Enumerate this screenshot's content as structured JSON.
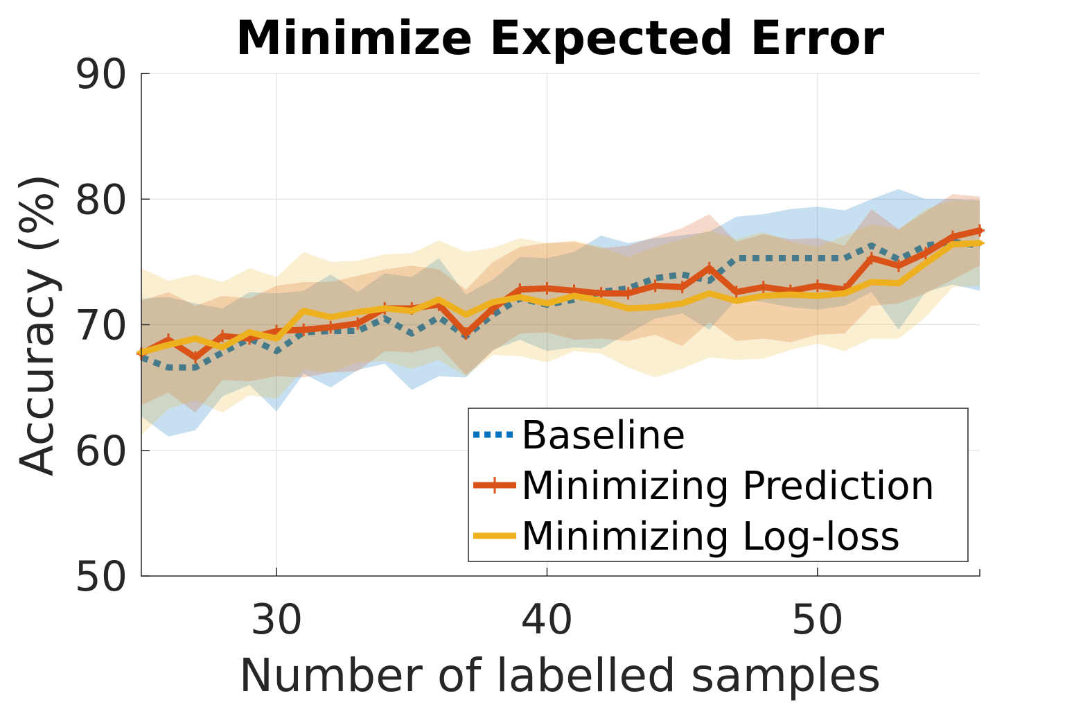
{
  "chart_data": {
    "type": "line",
    "title": "Minimize Expected Error",
    "xlabel": "Number of labelled samples",
    "ylabel": "Accuracy (%)",
    "xlim": [
      25,
      56
    ],
    "ylim": [
      50,
      90
    ],
    "xticks": [
      30,
      40,
      50
    ],
    "yticks": [
      50,
      60,
      70,
      80,
      90
    ],
    "grid": true,
    "legend_position": "lower-right",
    "x": [
      25,
      26,
      27,
      28,
      29,
      30,
      31,
      32,
      33,
      34,
      35,
      36,
      37,
      38,
      39,
      40,
      41,
      42,
      43,
      44,
      45,
      46,
      47,
      48,
      49,
      50,
      51,
      52,
      53,
      54,
      55,
      56
    ],
    "series": [
      {
        "name": "Baseline",
        "color": "#0072BD",
        "style": "dotted",
        "values": [
          67.4,
          66.6,
          66.6,
          67.8,
          68.9,
          67.9,
          69.4,
          69.5,
          69.5,
          70.5,
          69.3,
          70.6,
          69.1,
          70.8,
          72.1,
          71.6,
          72.0,
          72.6,
          72.9,
          73.7,
          74.0,
          73.5,
          75.3,
          75.3,
          75.3,
          75.3,
          75.3,
          76.3,
          75.2,
          76.3,
          76.6,
          76.3
        ],
        "upper": [
          72.1,
          72.2,
          71.7,
          71.3,
          72.6,
          72.5,
          72.7,
          74.0,
          72.6,
          74.1,
          73.8,
          75.3,
          72.4,
          73.6,
          75.4,
          75.3,
          75.8,
          77.1,
          76.5,
          76.9,
          77.1,
          77.4,
          78.6,
          78.8,
          79.2,
          79.4,
          79.1,
          80.0,
          80.8,
          80.0,
          80.0,
          79.9
        ],
        "lower": [
          62.7,
          61.1,
          61.6,
          64.3,
          65.2,
          63.1,
          66.1,
          65.0,
          66.4,
          66.9,
          64.8,
          65.9,
          65.8,
          68.0,
          68.8,
          67.9,
          68.2,
          68.1,
          69.3,
          70.5,
          70.9,
          69.6,
          72.0,
          71.8,
          71.4,
          71.2,
          71.5,
          72.6,
          69.6,
          72.6,
          73.2,
          72.7
        ]
      },
      {
        "name": "Minimizing Prediction",
        "color": "#D95319",
        "style": "solid-plus",
        "values": [
          67.7,
          68.8,
          67.4,
          69.1,
          68.9,
          69.5,
          69.6,
          69.8,
          70.1,
          71.3,
          71.3,
          71.6,
          69.3,
          71.3,
          72.8,
          72.9,
          72.7,
          72.5,
          72.5,
          73.1,
          73.0,
          74.5,
          72.6,
          73.0,
          72.7,
          73.1,
          72.8,
          75.3,
          74.7,
          75.7,
          77.0,
          77.5
        ],
        "upper": [
          71.9,
          72.6,
          71.5,
          72.3,
          72.1,
          73.1,
          73.4,
          73.4,
          73.9,
          74.4,
          74.7,
          74.4,
          72.8,
          75.0,
          76.2,
          76.5,
          76.6,
          76.1,
          76.3,
          77.0,
          77.7,
          78.8,
          76.6,
          77.2,
          76.8,
          76.9,
          76.3,
          79.2,
          77.6,
          79.0,
          80.4,
          80.2
        ],
        "lower": [
          63.6,
          64.6,
          63.0,
          65.6,
          65.5,
          65.9,
          65.8,
          66.2,
          66.3,
          67.9,
          67.8,
          68.3,
          66.0,
          67.9,
          69.3,
          69.4,
          68.8,
          68.9,
          68.7,
          69.2,
          68.3,
          70.2,
          68.7,
          68.9,
          68.6,
          69.2,
          69.3,
          71.5,
          71.7,
          72.5,
          73.6,
          74.7
        ]
      },
      {
        "name": "Minimizing Log-loss",
        "color": "#EDB120",
        "style": "solid-dash",
        "values": [
          67.8,
          68.4,
          68.9,
          68.2,
          69.4,
          68.9,
          71.1,
          70.6,
          71.0,
          71.3,
          71.1,
          72.0,
          70.8,
          71.8,
          72.2,
          71.7,
          72.3,
          71.9,
          71.3,
          71.4,
          71.7,
          72.5,
          71.9,
          72.3,
          72.4,
          72.3,
          72.5,
          73.4,
          73.3,
          74.9,
          76.4,
          76.5
        ],
        "upper": [
          74.5,
          73.5,
          74.0,
          73.4,
          74.5,
          73.8,
          75.8,
          75.0,
          75.1,
          75.6,
          75.7,
          76.7,
          75.8,
          76.1,
          76.9,
          76.5,
          76.7,
          76.2,
          75.4,
          76.2,
          76.8,
          77.5,
          76.8,
          77.4,
          76.6,
          76.2,
          77.1,
          78.0,
          77.6,
          79.2,
          79.9,
          79.9
        ],
        "lower": [
          61.2,
          63.3,
          64.0,
          63.0,
          64.4,
          64.1,
          66.4,
          66.2,
          67.0,
          67.1,
          66.5,
          67.2,
          65.9,
          67.6,
          67.5,
          67.0,
          67.9,
          67.7,
          66.6,
          65.8,
          66.5,
          67.4,
          67.2,
          67.3,
          68.0,
          68.5,
          67.9,
          68.9,
          68.9,
          70.6,
          73.0,
          73.1
        ]
      }
    ]
  }
}
